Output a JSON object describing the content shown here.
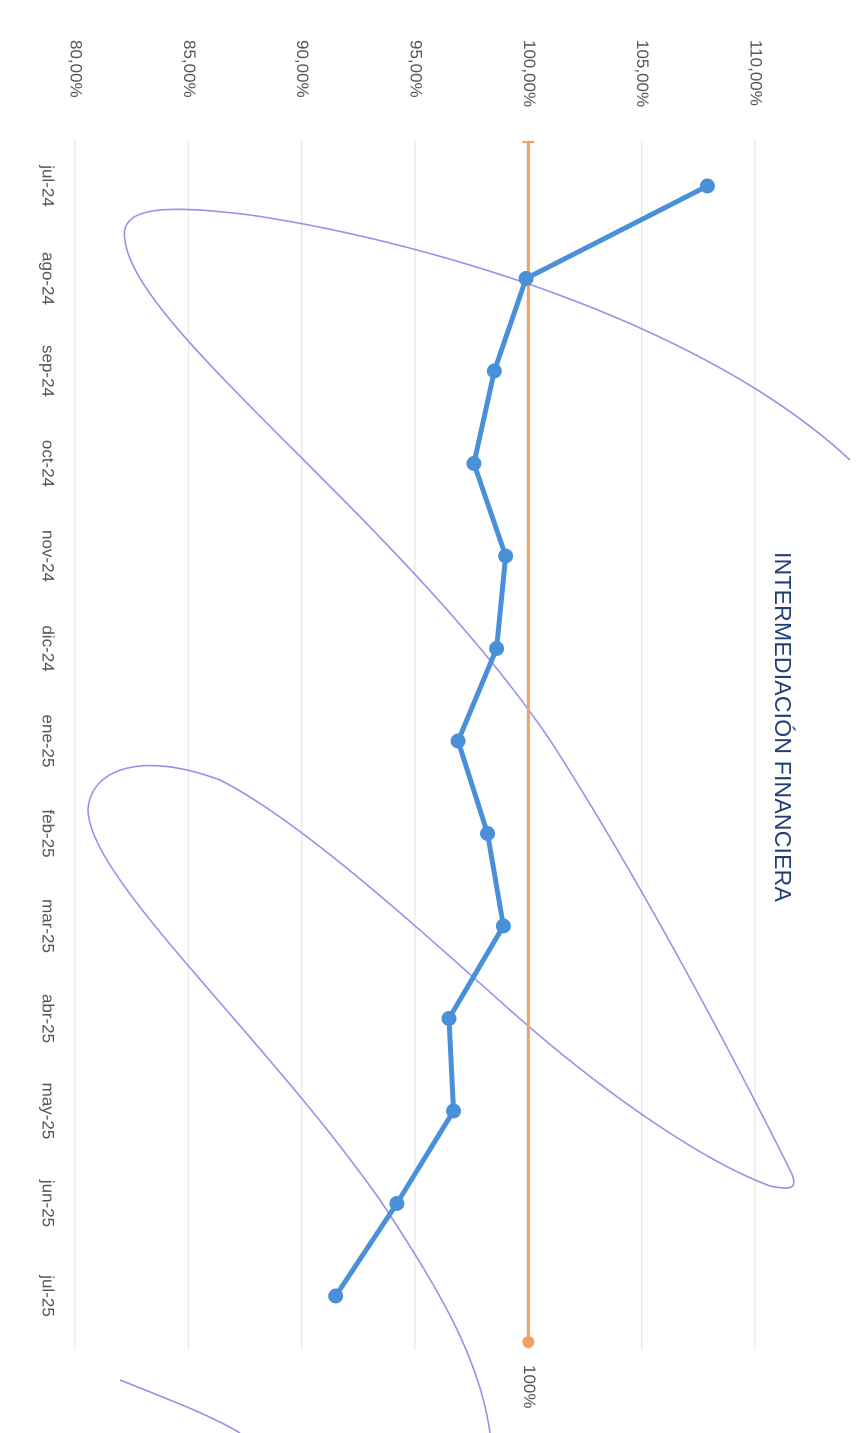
{
  "chart_data": {
    "type": "line",
    "title": "INTERMEDIACIÓN FINANCIERA",
    "orientation": "rotated-90-clockwise",
    "categories": [
      "jul-24",
      "ago-24",
      "sep-24",
      "oct-24",
      "nov-24",
      "dic-24",
      "ene-25",
      "feb-25",
      "mar-25",
      "abr-25",
      "may-25",
      "jun-25",
      "jul-25"
    ],
    "y_ticks": [
      "80,00%",
      "85,00%",
      "90,00%",
      "95,00%",
      "100,00%",
      "105,00%",
      "110,00%"
    ],
    "ylim": [
      80,
      110
    ],
    "grid": true,
    "series": [
      {
        "values": [
          107.9,
          99.9,
          98.5,
          97.6,
          99.0,
          98.6,
          96.9,
          98.2,
          98.9,
          96.5,
          96.7,
          94.2,
          91.5
        ],
        "color": "#4a90d9"
      },
      {
        "values": [
          100,
          100,
          100,
          100,
          100,
          100,
          100,
          100,
          100,
          100,
          100,
          100,
          100
        ],
        "color": "#f0a060",
        "end_label": "100%"
      }
    ]
  }
}
